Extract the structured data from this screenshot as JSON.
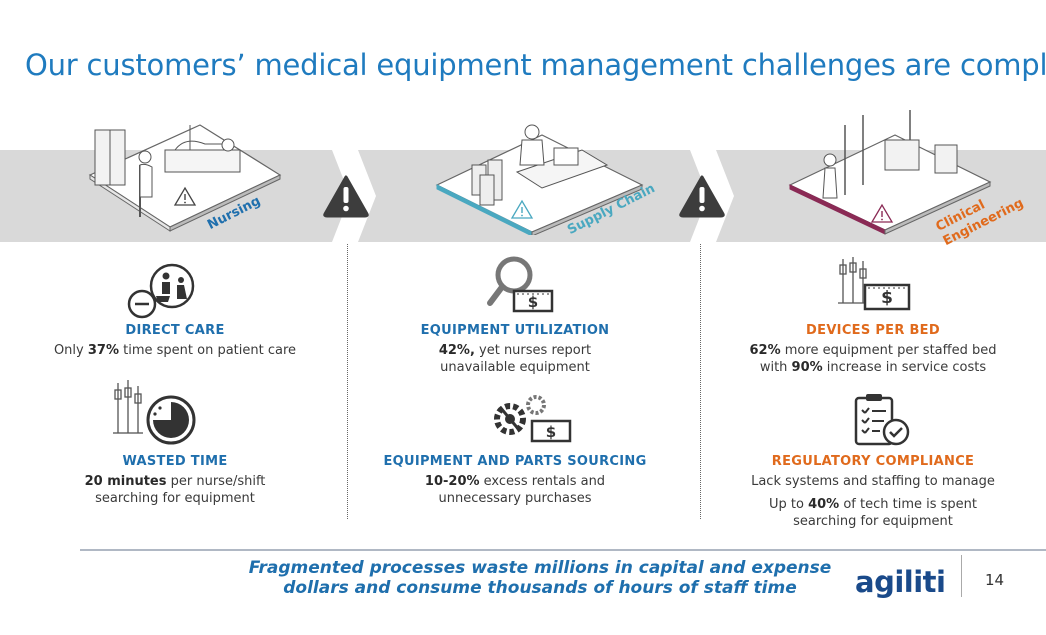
{
  "title": "Our customers’ medical equipment management challenges are complex",
  "columns": [
    {
      "tag": "Nursing",
      "items": [
        {
          "heading": "DIRECT CARE",
          "pre": "Only ",
          "bold": "37%",
          "post": " time spent on patient care"
        },
        {
          "heading": "WASTED TIME",
          "bold": "20 minutes",
          "post": " per nurse/shift",
          "line2": "searching for equipment"
        }
      ]
    },
    {
      "tag": "Supply Chain",
      "items": [
        {
          "heading": "EQUIPMENT UTILIZATION",
          "bold": "42%,",
          "post": " yet nurses report",
          "line2": "unavailable equipment"
        },
        {
          "heading": "EQUIPMENT AND PARTS SOURCING",
          "bold": "10-20%",
          "post": " excess rentals and",
          "line2": "unnecessary purchases"
        }
      ]
    },
    {
      "tag_line1": "Clinical",
      "tag_line2": "Engineering",
      "items": [
        {
          "heading": "DEVICES PER BED",
          "bold": "62%",
          "post": " more equipment per staffed bed",
          "line2_pre": "with ",
          "line2_bold": "90%",
          "line2_post": " increase in service costs"
        },
        {
          "heading": "REGULATORY COMPLIANCE",
          "line1": "Lack systems and staffing to manage",
          "line2_pre": "Up to ",
          "line2_bold": "40%",
          "line2_post": " of tech time is spent",
          "line3": "searching for equipment"
        }
      ]
    }
  ],
  "footer": {
    "line1": "Fragmented processes waste millions in capital and expense",
    "line2": "dollars and consume thousands of hours of staff time"
  },
  "logo": "agiliti",
  "page_number": "14",
  "dollar_sign": "$",
  "colors": {
    "title_blue": "#1f7bbf",
    "heading_blue": "#1f6fad",
    "heading_orange": "#e06a1c",
    "band_gray": "#d9d9d9",
    "teal_accent": "#4aa8c0",
    "maroon_accent": "#8a2a55"
  }
}
